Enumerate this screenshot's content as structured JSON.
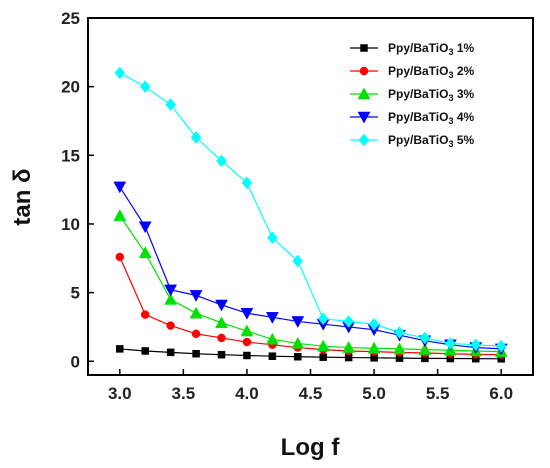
{
  "chart_data": {
    "type": "line",
    "xlabel": "Log f",
    "ylabel": "tan δ",
    "xlim": [
      2.75,
      6.25
    ],
    "ylim": [
      -1,
      25
    ],
    "xticks": [
      3.0,
      3.5,
      4.0,
      4.5,
      5.0,
      5.5,
      6.0
    ],
    "yticks": [
      0,
      5,
      10,
      15,
      20,
      25
    ],
    "grid": false,
    "legend_position": "top-right",
    "x": [
      3.0,
      3.2,
      3.4,
      3.6,
      3.8,
      4.0,
      4.2,
      4.4,
      4.6,
      4.8,
      5.0,
      5.2,
      5.4,
      5.6,
      5.8,
      6.0
    ],
    "series": [
      {
        "name": "Ppy/BaTiO3 1%",
        "label": "Ppy/BaTiO",
        "sub": "3",
        "pct": " 1%",
        "color": "#000000",
        "marker": "square",
        "values": [
          0.9,
          0.75,
          0.65,
          0.55,
          0.48,
          0.42,
          0.37,
          0.33,
          0.3,
          0.27,
          0.25,
          0.23,
          0.21,
          0.2,
          0.19,
          0.18
        ]
      },
      {
        "name": "Ppy/BaTiO3 2%",
        "label": "Ppy/BaTiO",
        "sub": "3",
        "pct": " 2%",
        "color": "#ff0000",
        "marker": "circle",
        "values": [
          7.6,
          3.4,
          2.6,
          2.0,
          1.7,
          1.4,
          1.2,
          1.0,
          0.85,
          0.75,
          0.7,
          0.65,
          0.6,
          0.55,
          0.5,
          0.48
        ]
      },
      {
        "name": "Ppy/BaTiO3 3%",
        "label": "Ppy/BaTiO",
        "sub": "3",
        "pct": " 3%",
        "color": "#00e000",
        "marker": "triangle-up",
        "values": [
          10.6,
          7.9,
          4.5,
          3.5,
          2.8,
          2.2,
          1.6,
          1.3,
          1.1,
          1.0,
          0.95,
          0.9,
          0.85,
          0.8,
          0.75,
          0.7
        ]
      },
      {
        "name": "Ppy/BaTiO3 4%",
        "label": "Ppy/BaTiO",
        "sub": "3",
        "pct": " 4%",
        "color": "#0000ff",
        "marker": "triangle-down",
        "values": [
          12.7,
          9.8,
          5.2,
          4.8,
          4.1,
          3.5,
          3.2,
          2.9,
          2.7,
          2.5,
          2.3,
          1.9,
          1.5,
          1.2,
          1.0,
          0.9
        ]
      },
      {
        "name": "Ppy/BaTiO3 5%",
        "label": "Ppy/BaTiO",
        "sub": "3",
        "pct": " 5%",
        "color": "#00ffff",
        "marker": "diamond",
        "values": [
          21.0,
          20.0,
          18.7,
          16.3,
          14.6,
          13.0,
          9.0,
          7.3,
          3.1,
          2.9,
          2.7,
          2.1,
          1.7,
          1.3,
          1.2,
          1.1
        ]
      }
    ]
  }
}
